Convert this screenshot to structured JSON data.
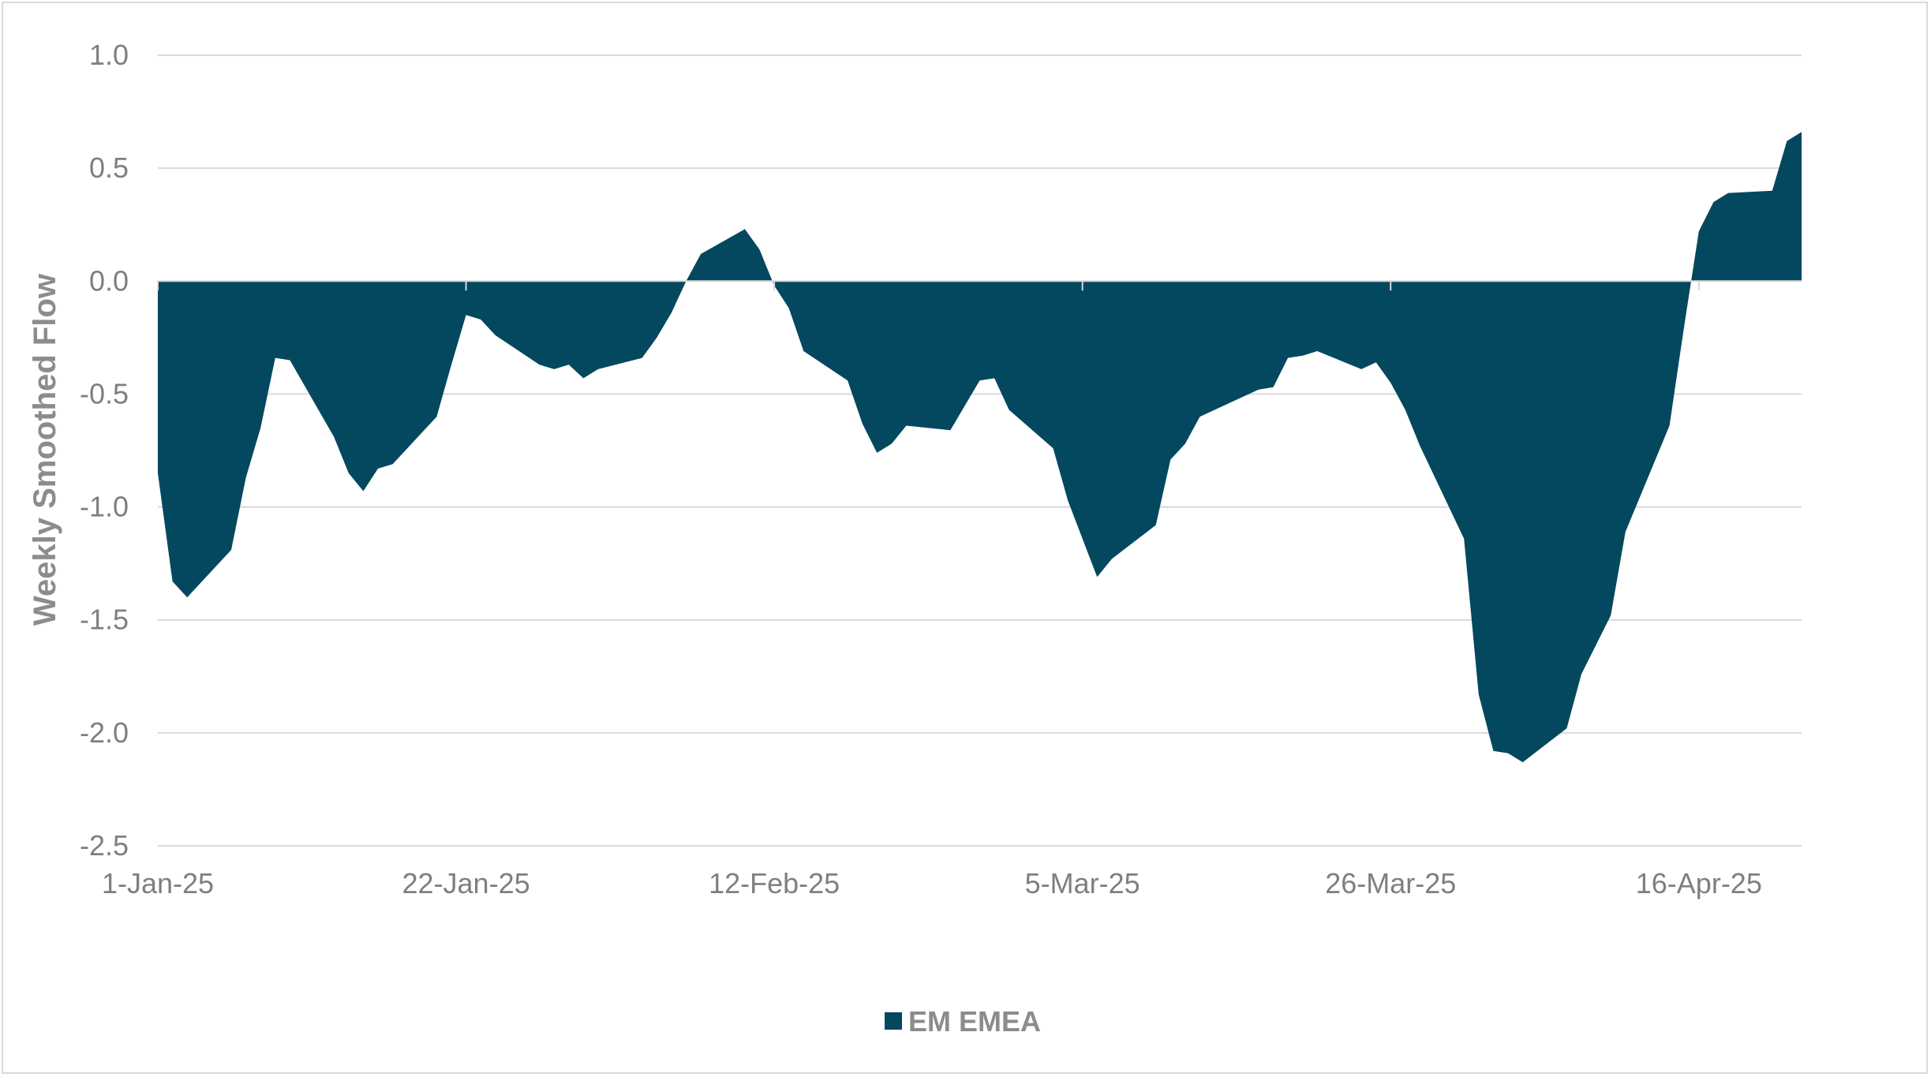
{
  "chart_data": {
    "type": "area",
    "ylabel": "Weekly Smoothed Flow",
    "xlabel": "",
    "ylim": [
      -2.5,
      1.0
    ],
    "yticks": [
      1.0,
      0.5,
      0.0,
      -0.5,
      -1.0,
      -1.5,
      -2.0,
      -2.5
    ],
    "ytick_labels": [
      "1.0",
      "0.5",
      "0.0",
      "-0.5",
      "-1.0",
      "-1.5",
      "-2.0",
      "-2.5"
    ],
    "xlim": [
      "2025-01-01",
      "2025-04-23"
    ],
    "xticks": [
      "2025-01-01",
      "2025-01-22",
      "2025-02-12",
      "2025-03-05",
      "2025-03-26",
      "2025-04-16"
    ],
    "xtick_labels": [
      "1-Jan-25",
      "22-Jan-25",
      "12-Feb-25",
      "5-Mar-25",
      "26-Mar-25",
      "16-Apr-25"
    ],
    "grid": true,
    "legend_position": "bottom",
    "series": [
      {
        "name": "EM EMEA",
        "color": "#03485e",
        "x": [
          "2025-01-01",
          "2025-01-02",
          "2025-01-03",
          "2025-01-06",
          "2025-01-07",
          "2025-01-08",
          "2025-01-09",
          "2025-01-10",
          "2025-01-13",
          "2025-01-14",
          "2025-01-15",
          "2025-01-16",
          "2025-01-17",
          "2025-01-20",
          "2025-01-21",
          "2025-01-22",
          "2025-01-23",
          "2025-01-24",
          "2025-01-27",
          "2025-01-28",
          "2025-01-29",
          "2025-01-30",
          "2025-01-31",
          "2025-02-03",
          "2025-02-04",
          "2025-02-05",
          "2025-02-06",
          "2025-02-07",
          "2025-02-10",
          "2025-02-11",
          "2025-02-12",
          "2025-02-13",
          "2025-02-14",
          "2025-02-17",
          "2025-02-18",
          "2025-02-19",
          "2025-02-20",
          "2025-02-21",
          "2025-02-24",
          "2025-02-25",
          "2025-02-26",
          "2025-02-27",
          "2025-02-28",
          "2025-03-03",
          "2025-03-04",
          "2025-03-05",
          "2025-03-06",
          "2025-03-07",
          "2025-03-10",
          "2025-03-11",
          "2025-03-12",
          "2025-03-13",
          "2025-03-14",
          "2025-03-17",
          "2025-03-18",
          "2025-03-19",
          "2025-03-20",
          "2025-03-21",
          "2025-03-24",
          "2025-03-25",
          "2025-03-26",
          "2025-03-27",
          "2025-03-28",
          "2025-03-31",
          "2025-04-01",
          "2025-04-02",
          "2025-04-03",
          "2025-04-04",
          "2025-04-07",
          "2025-04-08",
          "2025-04-09",
          "2025-04-10",
          "2025-04-11",
          "2025-04-14",
          "2025-04-15",
          "2025-04-16",
          "2025-04-17",
          "2025-04-18",
          "2025-04-21",
          "2025-04-22",
          "2025-04-23"
        ],
        "y": [
          -0.85,
          -1.33,
          -1.4,
          -1.19,
          -0.87,
          -0.65,
          -0.34,
          -0.35,
          -0.69,
          -0.85,
          -0.93,
          -0.83,
          -0.81,
          -0.6,
          -0.37,
          -0.15,
          -0.17,
          -0.24,
          -0.37,
          -0.39,
          -0.37,
          -0.43,
          -0.39,
          -0.34,
          -0.25,
          -0.14,
          0.0,
          0.12,
          0.23,
          0.14,
          -0.02,
          -0.12,
          -0.31,
          -0.44,
          -0.63,
          -0.76,
          -0.72,
          -0.64,
          -0.66,
          -0.55,
          -0.44,
          -0.43,
          -0.57,
          -0.74,
          -0.97,
          -1.14,
          -1.31,
          -1.23,
          -1.08,
          -0.79,
          -0.72,
          -0.6,
          -0.57,
          -0.48,
          -0.47,
          -0.34,
          -0.33,
          -0.31,
          -0.39,
          -0.36,
          -0.45,
          -0.57,
          -0.73,
          -1.14,
          -1.83,
          -2.08,
          -2.09,
          -2.13,
          -1.98,
          -1.74,
          -1.61,
          -1.48,
          -1.11,
          -0.64,
          -0.2,
          0.22,
          0.35,
          0.39,
          0.4,
          0.62,
          0.66
        ]
      }
    ]
  }
}
